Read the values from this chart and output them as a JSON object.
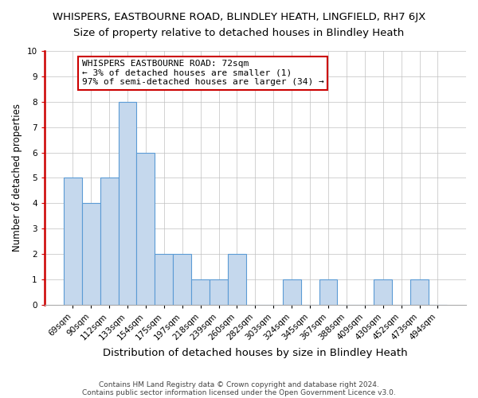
{
  "title": "WHISPERS, EASTBOURNE ROAD, BLINDLEY HEATH, LINGFIELD, RH7 6JX",
  "subtitle": "Size of property relative to detached houses in Blindley Heath",
  "xlabel": "Distribution of detached houses by size in Blindley Heath",
  "ylabel": "Number of detached properties",
  "bins": [
    "69sqm",
    "90sqm",
    "112sqm",
    "133sqm",
    "154sqm",
    "175sqm",
    "197sqm",
    "218sqm",
    "239sqm",
    "260sqm",
    "282sqm",
    "303sqm",
    "324sqm",
    "345sqm",
    "367sqm",
    "388sqm",
    "409sqm",
    "430sqm",
    "452sqm",
    "473sqm",
    "494sqm"
  ],
  "values": [
    5,
    4,
    5,
    8,
    6,
    2,
    2,
    1,
    1,
    2,
    0,
    0,
    1,
    0,
    1,
    0,
    0,
    1,
    0,
    1,
    0
  ],
  "bar_color": "#c5d8ed",
  "bar_edge_color": "#5b9bd5",
  "highlight_line_color": "#cc0000",
  "ylim": [
    0,
    10
  ],
  "yticks": [
    0,
    1,
    2,
    3,
    4,
    5,
    6,
    7,
    8,
    9,
    10
  ],
  "annotation_title": "WHISPERS EASTBOURNE ROAD: 72sqm",
  "annotation_line1": "← 3% of detached houses are smaller (1)",
  "annotation_line2": "97% of semi-detached houses are larger (34) →",
  "annotation_box_color": "#ffffff",
  "annotation_box_edge": "#cc0000",
  "footer1": "Contains HM Land Registry data © Crown copyright and database right 2024.",
  "footer2": "Contains public sector information licensed under the Open Government Licence v3.0.",
  "background_color": "#ffffff",
  "grid_color": "#c0c0c0",
  "title_fontsize": 9.5,
  "subtitle_fontsize": 9.5,
  "xlabel_fontsize": 9.5,
  "ylabel_fontsize": 8.5,
  "tick_fontsize": 7.5,
  "annotation_fontsize": 8,
  "footer_fontsize": 6.5
}
